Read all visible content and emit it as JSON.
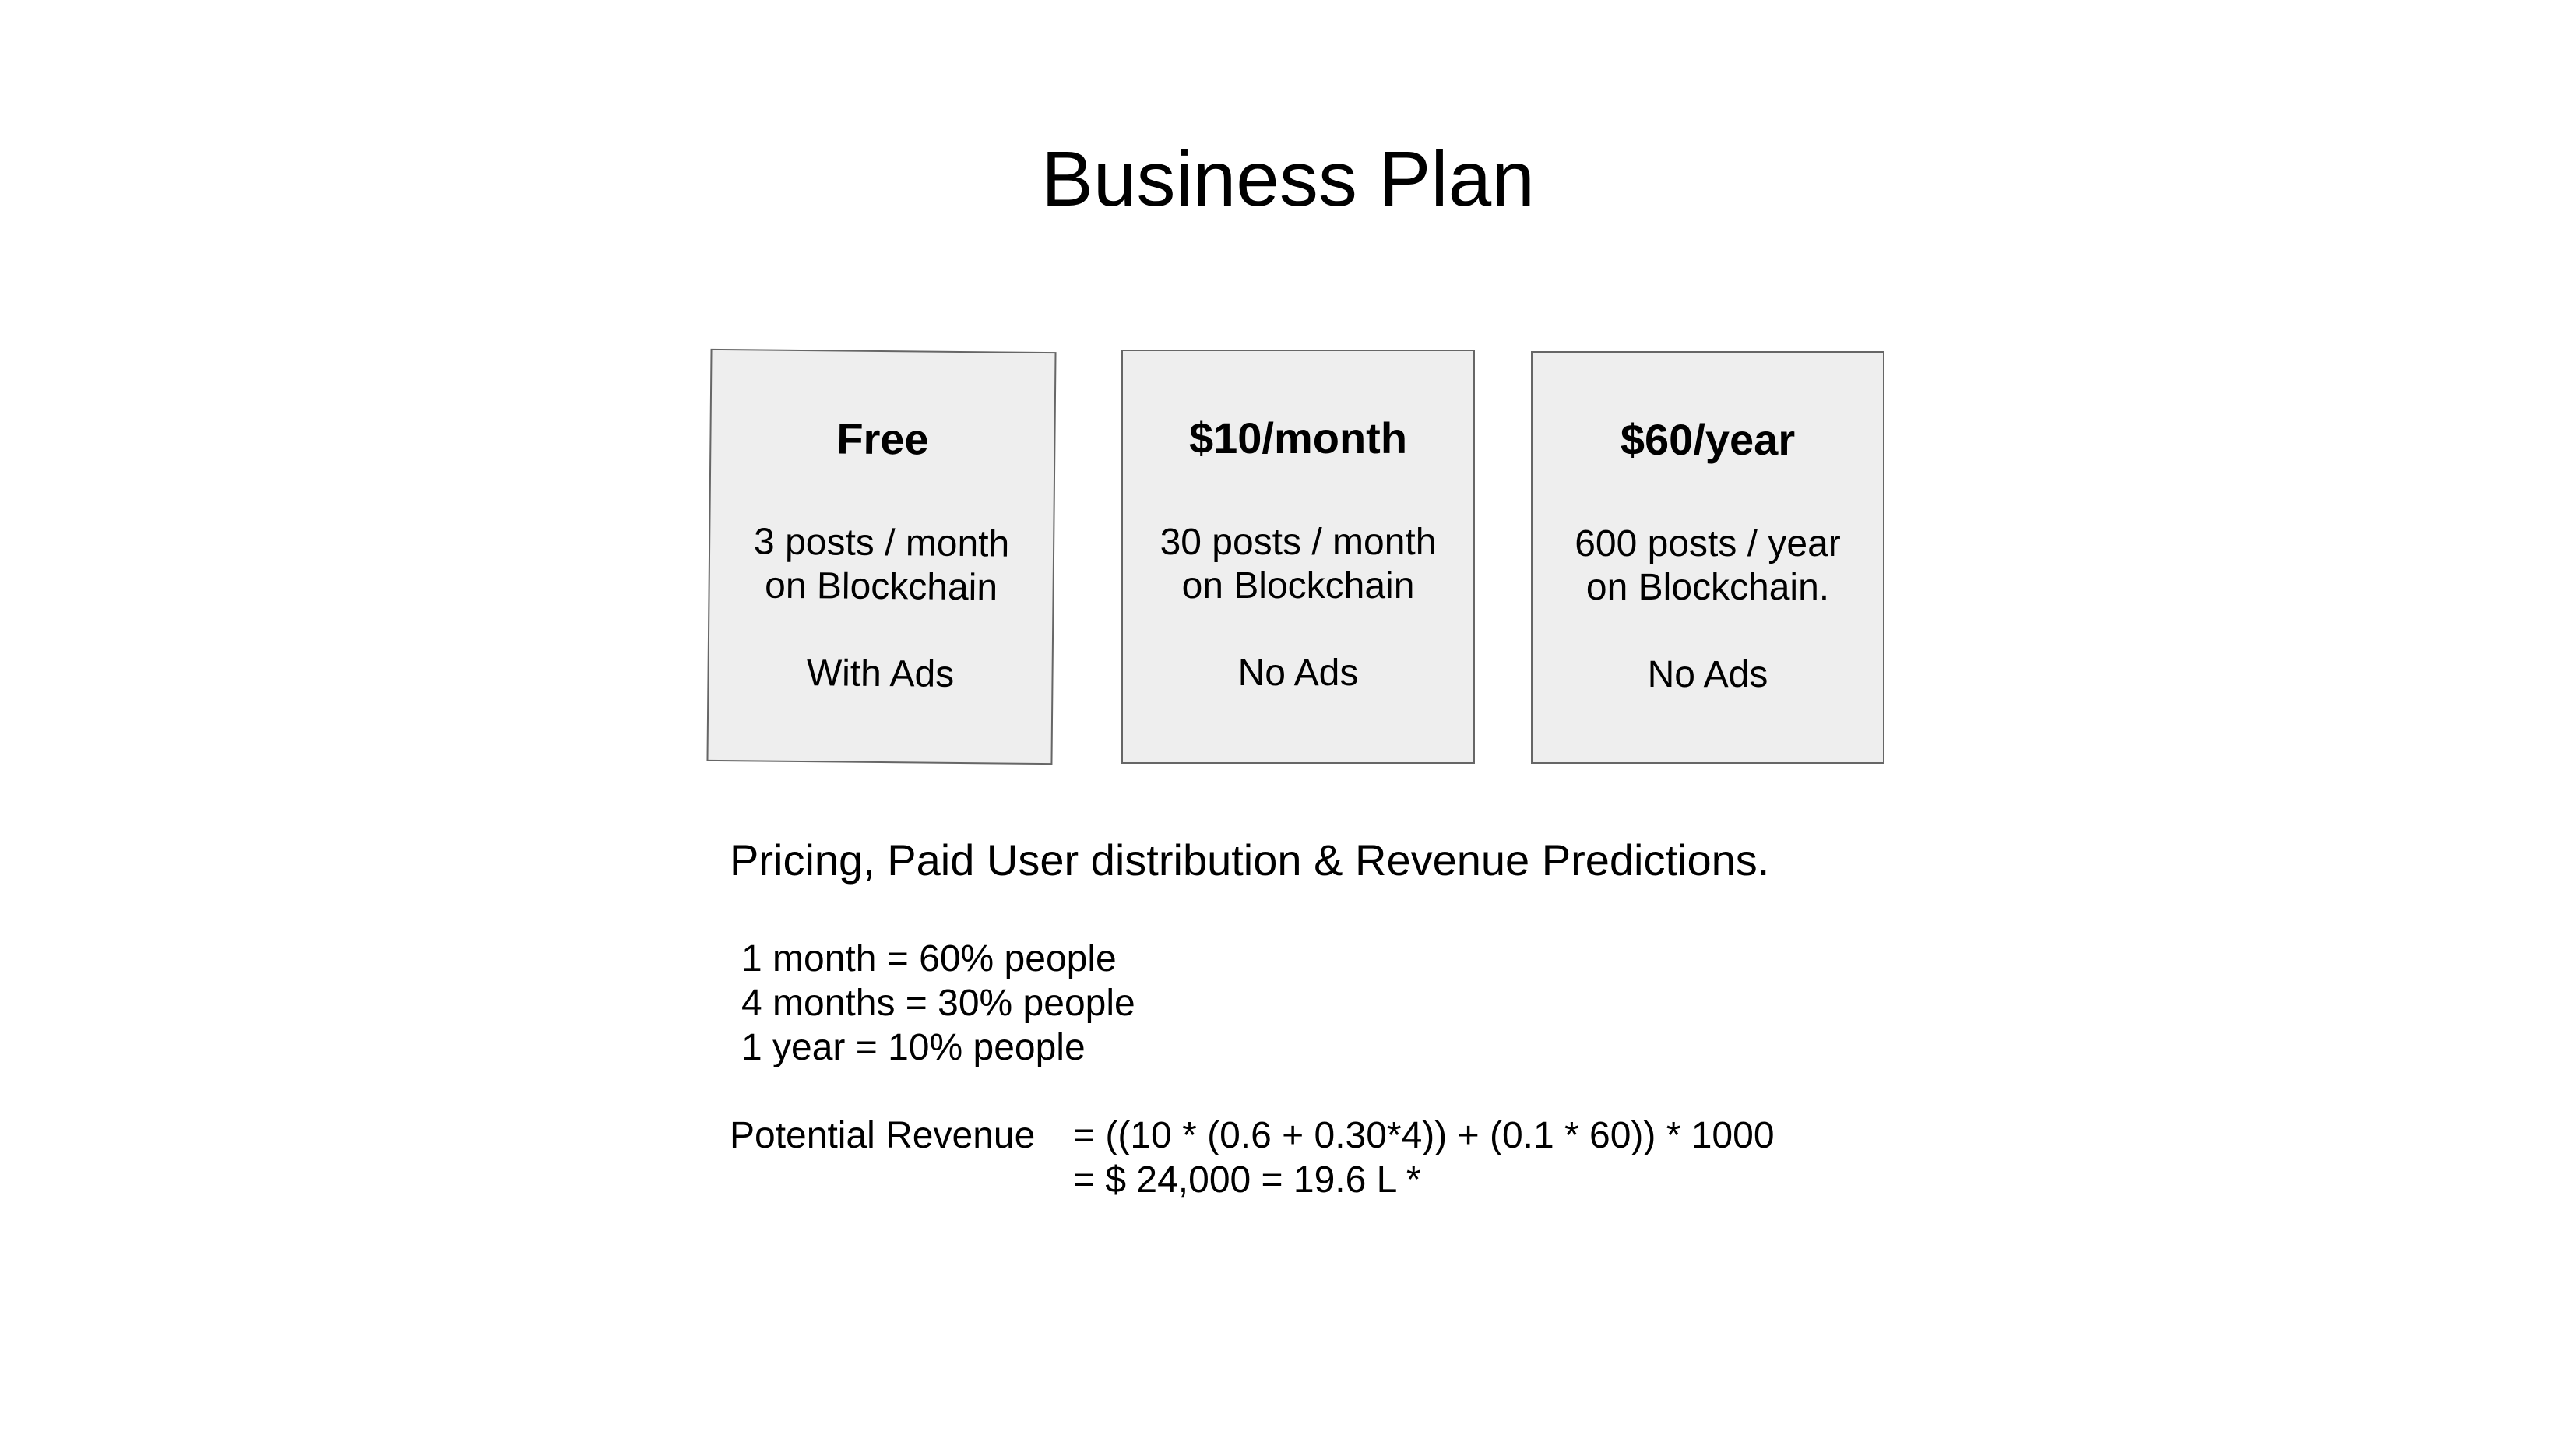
{
  "slide": {
    "title": "Business Plan",
    "plans": [
      {
        "price": "Free",
        "posts_line1": "3 posts / month",
        "posts_line2": "on Blockchain",
        "ads": "With Ads"
      },
      {
        "price": "$10/month",
        "posts_line1": "30 posts / month",
        "posts_line2": "on Blockchain",
        "ads": "No Ads"
      },
      {
        "price": "$60/year",
        "posts_line1": "600 posts / year",
        "posts_line2": "on Blockchain.",
        "ads": "No Ads"
      }
    ],
    "section_heading": "Pricing, Paid User distribution & Revenue Predictions.",
    "distribution": [
      "1 month =  60% people",
      "4 months = 30% people",
      "1 year = 10% people"
    ],
    "revenue": {
      "label": "Potential Revenue",
      "line1": "= ((10 * (0.6 + 0.30*4)) + (0.1 * 60)) * 1000",
      "line2": "= $ 24,000 = 19.6 L *"
    }
  }
}
